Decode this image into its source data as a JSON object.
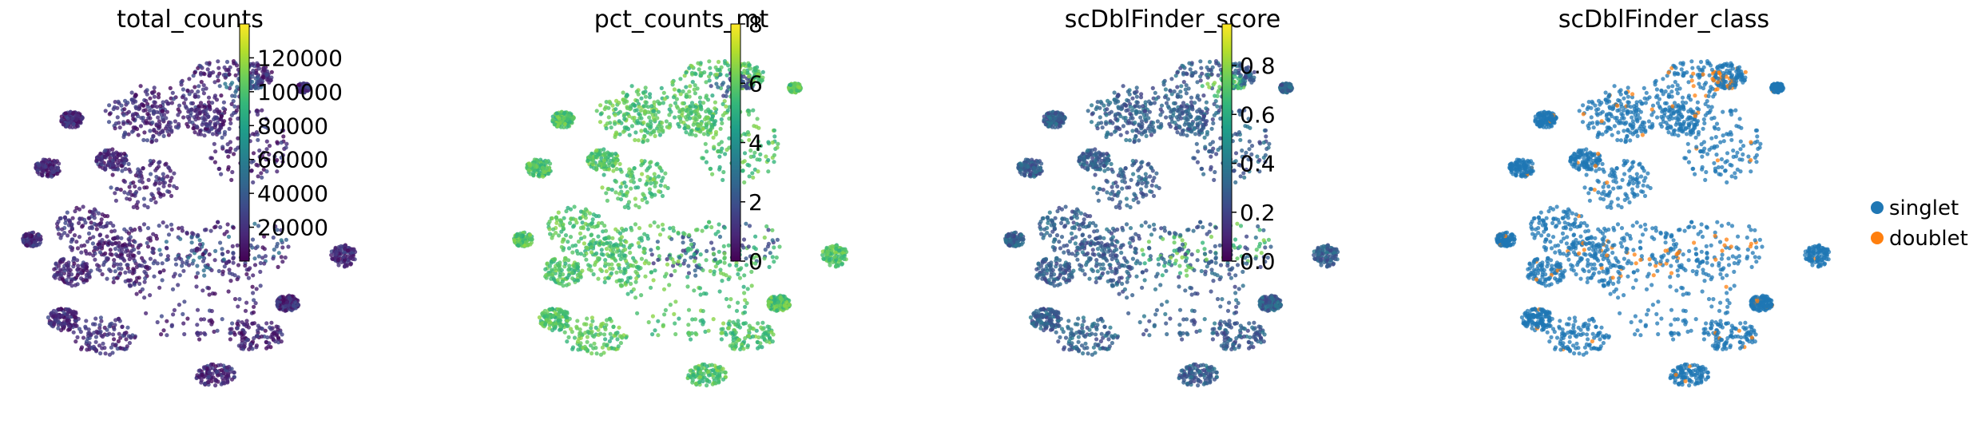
{
  "chart_data": [
    {
      "type": "scatter",
      "title": "total_counts",
      "xlabel": "",
      "ylabel": "",
      "color_mode": "continuous",
      "colormap": "viridis",
      "colorbar": {
        "min": 0,
        "max": 140000,
        "ticks": [
          20000,
          40000,
          60000,
          80000,
          100000,
          120000
        ],
        "tick_labels": [
          "20000",
          "40000",
          "60000",
          "80000",
          "100000",
          "120000"
        ]
      },
      "typical_value": 0.12,
      "hotspot_value": 0.3
    },
    {
      "type": "scatter",
      "title": "pct_counts_mt",
      "xlabel": "",
      "ylabel": "",
      "color_mode": "continuous",
      "colormap": "viridis",
      "colorbar": {
        "min": 0,
        "max": 8,
        "ticks": [
          0,
          2,
          4,
          6,
          8
        ],
        "tick_labels": [
          "0",
          "2",
          "4",
          "6",
          "8"
        ]
      },
      "typical_value": 0.72,
      "hotspot_value": 0.25
    },
    {
      "type": "scatter",
      "title": "scDblFinder_score",
      "xlabel": "",
      "ylabel": "",
      "color_mode": "continuous",
      "colormap": "viridis",
      "colorbar": {
        "min": 0,
        "max": 0.97,
        "ticks": [
          0,
          0.2,
          0.4,
          0.6,
          0.8
        ],
        "tick_labels": [
          "0.0",
          "0.2",
          "0.4",
          "0.6",
          "0.8"
        ]
      },
      "typical_value": 0.3,
      "hotspot_value": 0.72
    },
    {
      "type": "scatter",
      "title": "scDblFinder_class",
      "xlabel": "",
      "ylabel": "",
      "color_mode": "categorical",
      "legend": {
        "placement": "right",
        "entries": [
          {
            "label": "singlet",
            "color": "#1f77b4"
          },
          {
            "label": "doublet",
            "color": "#ff7f0e"
          }
        ]
      }
    }
  ],
  "colors": {
    "singlet": "#1f77b4",
    "doublet": "#ff7f0e",
    "viridis_stops": [
      "#440154",
      "#482878",
      "#3e4989",
      "#31688e",
      "#26828e",
      "#1f9e89",
      "#35b779",
      "#6ece58",
      "#b5de2b",
      "#fde725"
    ]
  }
}
